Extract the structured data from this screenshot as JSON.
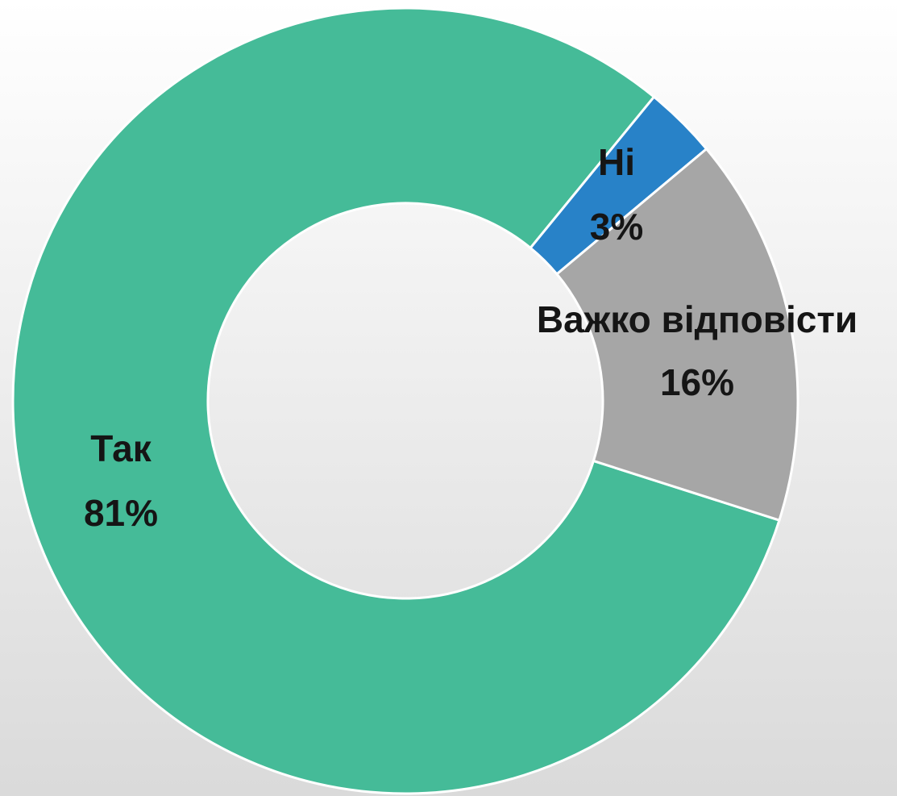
{
  "chart_data": {
    "type": "donut",
    "categories": [
      "Так",
      "Ні",
      "Важко відповісти"
    ],
    "values": [
      81,
      3,
      16
    ],
    "value_labels": [
      "81%",
      "3%",
      "16%"
    ],
    "colors": [
      "#45bb98",
      "#2882c8",
      "#a6a6a6"
    ]
  }
}
